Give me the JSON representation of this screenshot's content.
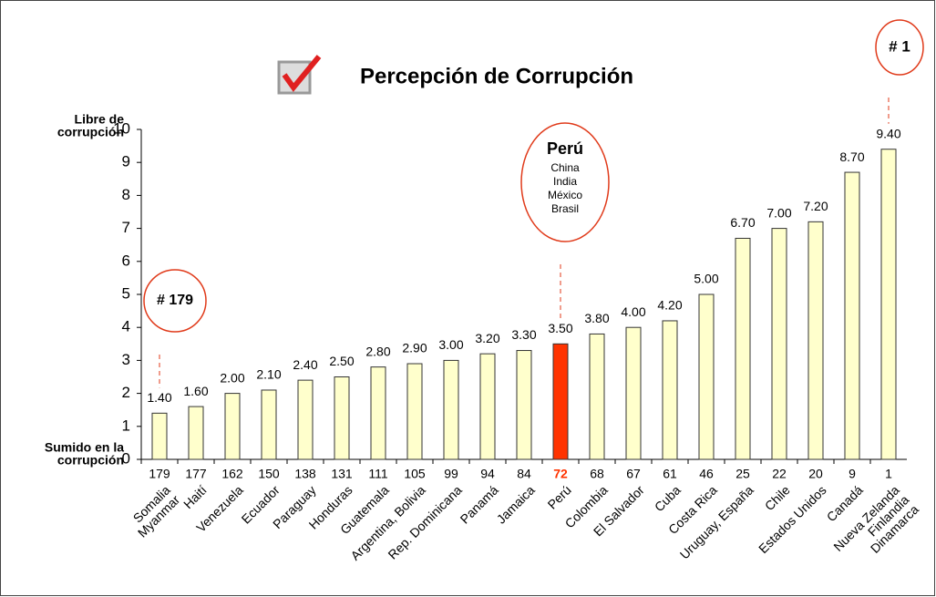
{
  "chart_data": {
    "type": "bar",
    "title": "Percepción de Corrupción",
    "y_top_label": [
      "Libre de",
      "corrupción"
    ],
    "y_bottom_label": [
      "Sumido en la",
      "corrupción"
    ],
    "categories": [
      [
        "Somalia",
        "Myanmar"
      ],
      [
        "Haití"
      ],
      [
        "Venezuela"
      ],
      [
        "Ecuador"
      ],
      [
        "Paraguay"
      ],
      [
        "Honduras"
      ],
      [
        "Guatemala"
      ],
      [
        "Argentina, Bolivia"
      ],
      [
        "Rep. Dominicana"
      ],
      [
        "Panamá"
      ],
      [
        "Jamaica"
      ],
      [
        "Perú"
      ],
      [
        "Colombia"
      ],
      [
        "El Salvador"
      ],
      [
        "Cuba"
      ],
      [
        "Costa Rica"
      ],
      [
        "Uruguay, España"
      ],
      [
        "Chile"
      ],
      [
        "Estados Unidos"
      ],
      [
        "Canadá"
      ],
      [
        "Nueva Zelanda",
        "Finlandia",
        "Dinamarca"
      ]
    ],
    "ranks": [
      179,
      177,
      162,
      150,
      138,
      131,
      111,
      105,
      99,
      94,
      84,
      72,
      68,
      67,
      61,
      46,
      25,
      22,
      20,
      9,
      1
    ],
    "values": [
      1.4,
      1.6,
      2.0,
      2.1,
      2.4,
      2.5,
      2.8,
      2.9,
      3.0,
      3.2,
      3.3,
      3.5,
      3.8,
      4.0,
      4.2,
      5.0,
      6.7,
      7.0,
      7.2,
      8.7,
      9.4
    ],
    "value_labels": [
      "1.40",
      "1.60",
      "2.00",
      "2.10",
      "2.40",
      "2.50",
      "2.80",
      "2.90",
      "3.00",
      "3.20",
      "3.30",
      "3.50",
      "3.80",
      "4.00",
      "4.20",
      "5.00",
      "6.70",
      "7.00",
      "7.20",
      "8.70",
      "9.40"
    ],
    "colors": [
      "#ffffcc",
      "#ffffcc",
      "#ffffcc",
      "#ffffcc",
      "#ffffcc",
      "#ffffcc",
      "#ffffcc",
      "#ffffcc",
      "#ffffcc",
      "#ffffcc",
      "#ffffcc",
      "#ff3300",
      "#ffffcc",
      "#ffffcc",
      "#ffffcc",
      "#ffffcc",
      "#ffffcc",
      "#ffffcc",
      "#ffffcc",
      "#ffffcc",
      "#ffffcc"
    ],
    "highlight_color": "#ff3300",
    "annotations": [
      [
        "# 179"
      ],
      [
        "Perú",
        "China",
        "India",
        "México",
        "Brasil"
      ],
      [
        "# 1"
      ]
    ],
    "ylim": [
      0,
      10
    ],
    "yticks": [
      0,
      1,
      2,
      3,
      4,
      5,
      6,
      7,
      8,
      9,
      10
    ]
  }
}
